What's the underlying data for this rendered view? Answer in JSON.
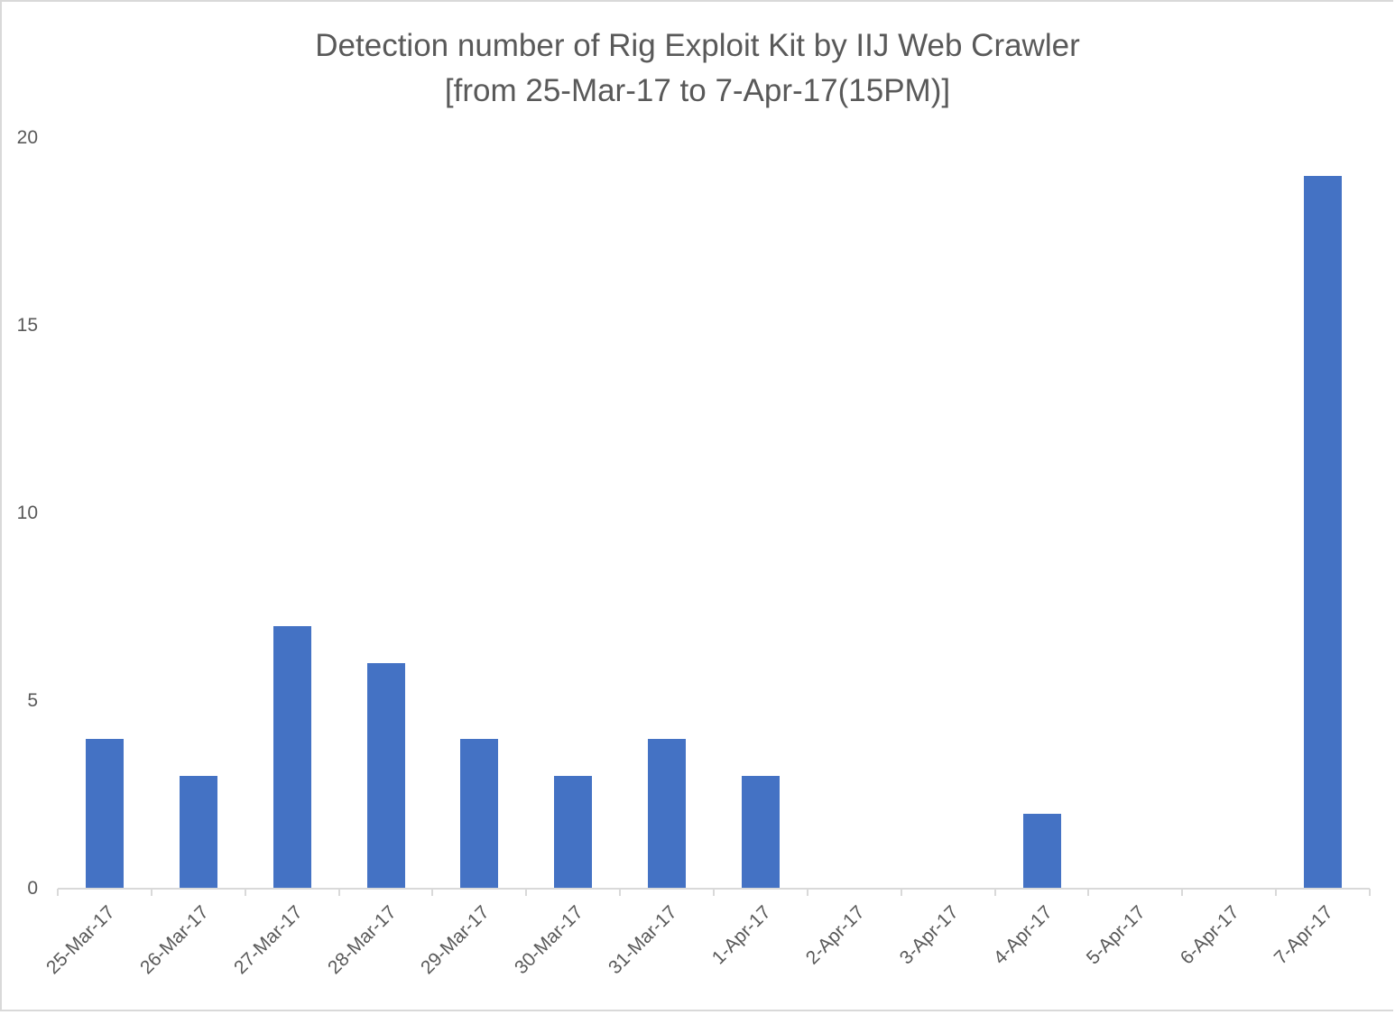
{
  "chart_data": {
    "type": "bar",
    "title": "Detection number of Rig Exploit Kit by IIJ Web Crawler",
    "subtitle": "[from 25-Mar-17 to 7-Apr-17(15PM)]",
    "xlabel": "",
    "ylabel": "",
    "ylim": [
      0,
      20
    ],
    "yticks": [
      "0",
      "5",
      "10",
      "15",
      "20"
    ],
    "grid": false,
    "legend": null,
    "bar_color": "#4472c4",
    "categories": [
      "25-Mar-17",
      "26-Mar-17",
      "27-Mar-17",
      "28-Mar-17",
      "29-Mar-17",
      "30-Mar-17",
      "31-Mar-17",
      "1-Apr-17",
      "2-Apr-17",
      "3-Apr-17",
      "4-Apr-17",
      "5-Apr-17",
      "6-Apr-17",
      "7-Apr-17"
    ],
    "values": [
      4,
      3,
      7,
      6,
      4,
      3,
      4,
      3,
      0,
      0,
      2,
      0,
      0,
      19
    ]
  }
}
